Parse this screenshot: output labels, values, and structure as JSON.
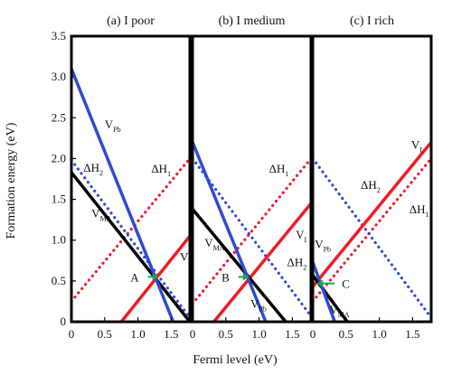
{
  "chart_data": {
    "type": "line",
    "xlabel": "Fermi level (eV)",
    "ylabel": "Formation energy (eV)",
    "ylim": [
      0,
      3.5
    ],
    "y_ticks": [
      "0",
      "0.5",
      "1.0",
      "1.5",
      "2.0",
      "2.5",
      "3.0",
      "3.5"
    ],
    "grid": false,
    "colors": {
      "V_Pb": "#2f4bd1",
      "V_I": "#ee1c25",
      "V_MA": "#000000",
      "dH1": "#ee1c25",
      "dH2": "#2f4bd1",
      "arrow": "#1aa64b"
    },
    "panels": [
      {
        "title": "(a) I poor",
        "xlim": [
          0,
          1.78
        ],
        "x_ticks": [
          "0",
          "0.5",
          "1.0",
          "1.5"
        ],
        "series": [
          {
            "key": "V_Pb",
            "name": "V",
            "sub": "Pb",
            "style": "solid",
            "points": [
              [
                0,
                3.1
              ],
              [
                1.53,
                0
              ]
            ]
          },
          {
            "key": "V_MA",
            "name": "V",
            "sub": "MA",
            "style": "solid",
            "points": [
              [
                0,
                1.83
              ],
              [
                1.78,
                0
              ]
            ]
          },
          {
            "key": "V_I",
            "name": "V",
            "sub": "I",
            "style": "solid",
            "points": [
              [
                0.75,
                0
              ],
              [
                1.78,
                1.05
              ]
            ]
          },
          {
            "key": "dH2",
            "name": "ΔH",
            "sub": "2",
            "style": "dotted",
            "points": [
              [
                0,
                1.98
              ],
              [
                1.78,
                0.05
              ]
            ]
          },
          {
            "key": "dH1",
            "name": "ΔH",
            "sub": "1",
            "style": "dotted",
            "points": [
              [
                0,
                0.25
              ],
              [
                1.78,
                2.0
              ]
            ]
          }
        ],
        "labels": [
          {
            "text": "V",
            "sub": "Pb",
            "x": 0.5,
            "y": 2.37
          },
          {
            "text": "ΔH",
            "sub": "2",
            "x": 0.18,
            "y": 1.84
          },
          {
            "text": "ΔH",
            "sub": "1",
            "x": 1.2,
            "y": 1.83
          },
          {
            "text": "V",
            "sub": "MA",
            "x": 0.3,
            "y": 1.28
          },
          {
            "text": "V",
            "sub": "I",
            "x": 1.63,
            "y": 0.75
          }
        ],
        "point": {
          "label": "A",
          "x": 1.34,
          "y": 0.55
        }
      },
      {
        "title": "(b) I medium",
        "xlim": [
          0,
          1.78
        ],
        "x_ticks": [
          "0",
          "0.5",
          "1.0",
          "1.5"
        ],
        "series": [
          {
            "key": "V_Pb",
            "name": "V",
            "sub": "Pb",
            "style": "solid",
            "points": [
              [
                0,
                2.2
              ],
              [
                1.1,
                0
              ]
            ]
          },
          {
            "key": "V_MA",
            "name": "V",
            "sub": "MA",
            "style": "solid",
            "points": [
              [
                0,
                1.38
              ],
              [
                1.4,
                0
              ]
            ]
          },
          {
            "key": "V_I",
            "name": "V",
            "sub": "I",
            "style": "solid",
            "points": [
              [
                0.32,
                0
              ],
              [
                1.78,
                1.45
              ]
            ]
          },
          {
            "key": "dH2",
            "name": "ΔH",
            "sub": "2",
            "style": "dotted",
            "points": [
              [
                0,
                2.0
              ],
              [
                1.78,
                0.07
              ]
            ]
          },
          {
            "key": "dH1",
            "name": "ΔH",
            "sub": "1",
            "style": "dotted",
            "points": [
              [
                0,
                0.22
              ],
              [
                1.78,
                2.0
              ]
            ]
          }
        ],
        "labels": [
          {
            "text": "ΔH",
            "sub": "1",
            "x": 1.15,
            "y": 1.83
          },
          {
            "text": "V",
            "sub": "MA",
            "x": 0.18,
            "y": 0.92
          },
          {
            "text": "V",
            "sub": "I",
            "x": 1.55,
            "y": 1.02
          },
          {
            "text": "ΔH",
            "sub": "2",
            "x": 1.42,
            "y": 0.68
          },
          {
            "text": "V",
            "sub": "Pb",
            "x": 0.87,
            "y": 0.17
          }
        ],
        "point": {
          "label": "B",
          "x": 0.88,
          "y": 0.55
        }
      },
      {
        "title": "(c) I rich",
        "xlim": [
          0,
          1.78
        ],
        "x_ticks": [
          "0",
          "0.5",
          "1.0",
          "1.5"
        ],
        "series": [
          {
            "key": "V_Pb",
            "name": "V",
            "sub": "Pb",
            "style": "solid",
            "points": [
              [
                0,
                0.73
              ],
              [
                0.33,
                0
              ]
            ]
          },
          {
            "key": "V_MA",
            "name": "V",
            "sub": "MA",
            "style": "solid",
            "points": [
              [
                0,
                0.57
              ],
              [
                0.52,
                0
              ]
            ]
          },
          {
            "key": "V_I",
            "name": "V",
            "sub": "I",
            "style": "solid",
            "points": [
              [
                0,
                0.43
              ],
              [
                1.78,
                2.2
              ]
            ]
          },
          {
            "key": "dH2",
            "name": "ΔH",
            "sub": "2",
            "style": "dotted",
            "points": [
              [
                0,
                2.0
              ],
              [
                1.78,
                0.05
              ]
            ]
          },
          {
            "key": "dH1",
            "name": "ΔH",
            "sub": "1",
            "style": "dotted",
            "points": [
              [
                0,
                0.25
              ],
              [
                1.78,
                2.0
              ]
            ]
          }
        ],
        "labels": [
          {
            "text": "V",
            "sub": "I",
            "x": 1.48,
            "y": 2.12
          },
          {
            "text": "ΔH",
            "sub": "2",
            "x": 0.72,
            "y": 1.63
          },
          {
            "text": "ΔH",
            "sub": "1",
            "x": 1.45,
            "y": 1.33
          },
          {
            "text": "V",
            "sub": "Pb",
            "x": 0.03,
            "y": 0.9
          },
          {
            "text": "V",
            "sub": "MA",
            "x": 0.25,
            "y": 0.1
          }
        ],
        "point": {
          "label": "C",
          "x": 0.03,
          "y": 0.47
        }
      }
    ]
  }
}
